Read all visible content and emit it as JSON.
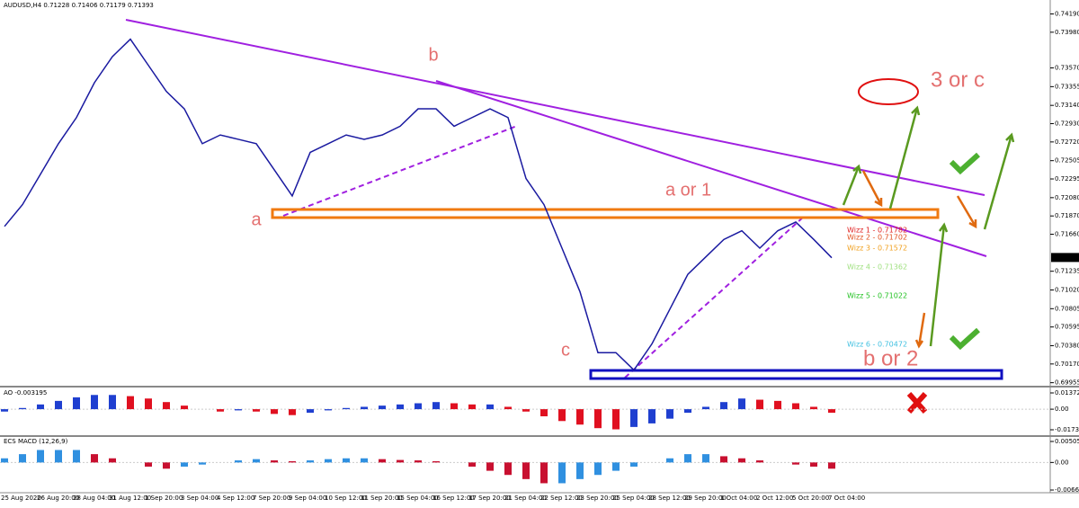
{
  "chart_data": {
    "type": "line",
    "title": "AUDUSD,H4  0.71228 0.71406 0.71179 0.71393",
    "last_price": 0.71393,
    "categories": [
      "25 Aug 2020",
      null,
      "26 Aug 20:00",
      null,
      "28 Aug 04:00",
      null,
      "31 Aug 12:00",
      null,
      "1 Sep 20:00",
      null,
      "3 Sep 04:00",
      null,
      "4 Sep 12:00",
      null,
      "7 Sep 20:00",
      null,
      "9 Sep 04:00",
      null,
      "10 Sep 12:00",
      null,
      "11 Sep 20:00",
      null,
      "15 Sep 04:00",
      null,
      "16 Sep 12:00",
      null,
      "17 Sep 20:00",
      null,
      "21 Sep 04:00",
      null,
      "22 Sep 12:00",
      null,
      "23 Sep 20:00",
      null,
      "25 Sep 04:00",
      null,
      "28 Sep 12:00",
      null,
      "29 Sep 20:00",
      null,
      "1 Oct 04:00",
      null,
      "2 Oct 12:00",
      null,
      "5 Oct 20:00",
      null,
      "7 Oct 04:00"
    ],
    "series": [
      {
        "name": "AUDUSD",
        "color": "#1a1aa0",
        "values": [
          0.7175,
          0.72,
          0.7235,
          0.727,
          0.73,
          0.734,
          0.737,
          0.739,
          0.736,
          0.733,
          0.731,
          0.727,
          0.728,
          0.7275,
          0.727,
          0.724,
          0.721,
          0.726,
          0.727,
          0.728,
          0.7275,
          0.728,
          0.729,
          0.731,
          0.731,
          0.729,
          0.73,
          0.731,
          0.73,
          0.723,
          0.72,
          0.715,
          0.71,
          0.703,
          0.703,
          0.701,
          0.704,
          0.708,
          0.712,
          0.714,
          0.716,
          0.717,
          0.715,
          0.717,
          0.718,
          0.716,
          0.7139
        ]
      }
    ],
    "ylim": [
      0.6991,
      0.7435
    ],
    "yticks": [
      {
        "value": 0.7419,
        "label": "0.74190"
      },
      {
        "value": 0.7398,
        "label": "0.73980"
      },
      {
        "value": 0.7357,
        "label": "0.73570"
      },
      0.73355,
      {
        "value": 0.7314,
        "label": "0.73140"
      },
      {
        "value": 0.7293,
        "label": "0.72930"
      },
      {
        "value": 0.7272,
        "label": "0.72720"
      },
      0.72505,
      0.72295,
      {
        "value": 0.7208,
        "label": "0.72080"
      },
      {
        "value": 0.7187,
        "label": "0.71870"
      },
      {
        "value": 0.7166,
        "label": "0.71660"
      },
      0.71235,
      {
        "value": 0.7102,
        "label": "0.71020"
      },
      0.70805,
      0.70595,
      {
        "value": 0.7038,
        "label": "0.70380"
      },
      {
        "value": 0.7017,
        "label": "0.70170"
      },
      0.69955
    ],
    "annotations": [
      "a",
      "b",
      "c",
      "a or 1",
      "3 or c",
      "b or 2"
    ],
    "wizz": [
      "Wizz 1 - 0.71782",
      "Wizz 2 - 0.71702",
      "Wizz 3 - 0.71572",
      "Wizz 4 - 0.71362",
      "Wizz 5 - 0.71022",
      "Wizz 6 - 0.70472"
    ],
    "ao": {
      "title": "AO -0.003195",
      "up_color": "#1f3fd0",
      "down_color": "#e01020",
      "ylim": [
        -0.02192,
        0.01752
      ],
      "yticks": [
        0.013724,
        {
          "value": 0,
          "label": "0.00"
        },
        -0.017367
      ],
      "values": [
        -0.002,
        0.001,
        0.004,
        0.007,
        0.01,
        0.012,
        0.012,
        0.011,
        0.009,
        0.006,
        0.003,
        0.0,
        -0.002,
        -0.001,
        -0.002,
        -0.004,
        -0.005,
        -0.003,
        -0.001,
        0.001,
        0.002,
        0.003,
        0.004,
        0.005,
        0.006,
        0.005,
        0.004,
        0.004,
        0.002,
        -0.002,
        -0.006,
        -0.01,
        -0.013,
        -0.016,
        -0.017,
        -0.015,
        -0.012,
        -0.008,
        -0.003,
        0.002,
        0.006,
        0.009,
        0.008,
        0.007,
        0.005,
        0.002,
        -0.003
      ]
    },
    "macd": {
      "title": "ECS MACD (12,26,9)",
      "up_color": "#3090e0",
      "down_color": "#c81030",
      "ylim": [
        -0.00728,
        0.00592
      ],
      "yticks": [
        0.005053,
        {
          "value": 0,
          "label": "0.00"
        },
        -0.006634
      ],
      "values": [
        0.001,
        0.002,
        0.003,
        0.003,
        0.003,
        0.002,
        0.001,
        0,
        -0.001,
        -0.0015,
        -0.001,
        -0.0005,
        0,
        0.0005,
        0.0008,
        0.0005,
        0.0003,
        0.0005,
        0.0008,
        0.001,
        0.001,
        0.0008,
        0.0006,
        0.0005,
        0.0003,
        0,
        -0.001,
        -0.002,
        -0.003,
        -0.004,
        -0.005,
        -0.005,
        -0.004,
        -0.003,
        -0.002,
        -0.001,
        0,
        0.001,
        0.002,
        0.002,
        0.0015,
        0.001,
        0.0005,
        0,
        -0.0005,
        -0.001,
        -0.0015
      ]
    }
  }
}
